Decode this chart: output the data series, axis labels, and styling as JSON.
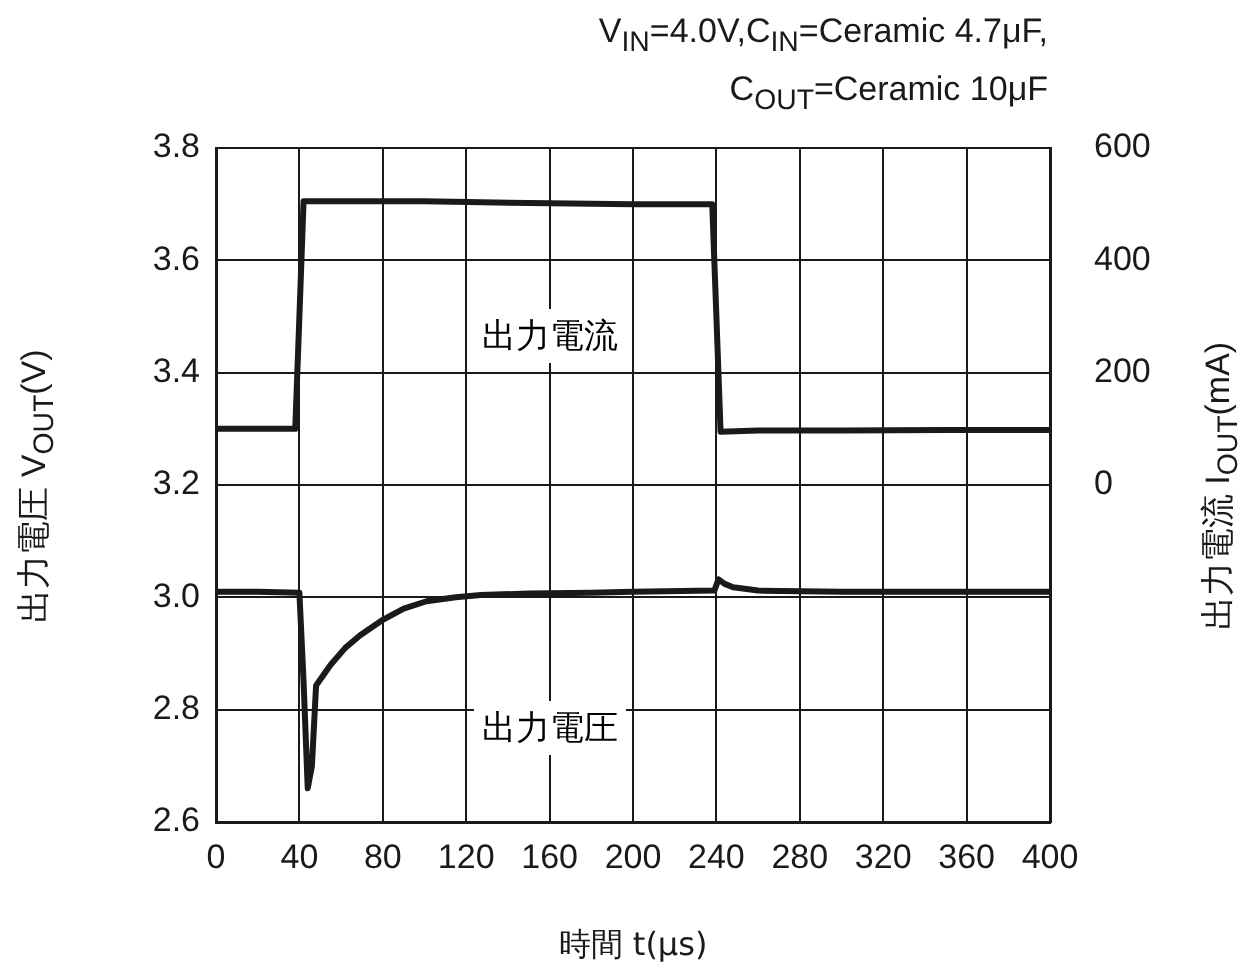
{
  "chart_data": {
    "type": "line",
    "subtitle": "V$_{IN}$=4.0V,C$_{IN}$=Ceramic 4.7μF,\nC$_{OUT}$=Ceramic 10μF",
    "xlabel": "時間 t(μs)",
    "ylabel": "出力電圧 V$_{OUT}$(V)",
    "y2label": "出力電流 I$_{OUT}$(mA)",
    "series": [
      {
        "color": "#1a1a1a",
        "axis": "y2",
        "x": [
          0,
          38,
          40,
          42,
          100,
          150,
          200,
          238,
          240,
          242,
          260,
          300,
          350,
          400
        ],
        "values": [
          100,
          100,
          300,
          505,
          505,
          502,
          500,
          500,
          300,
          95,
          97,
          97,
          98,
          98
        ]
      },
      {
        "color": "#1a1a1a",
        "axis": "y",
        "x": [
          0,
          20,
          40,
          42,
          44,
          46,
          48,
          55,
          62,
          69,
          80,
          90,
          101,
          115,
          127,
          150,
          180,
          200,
          239,
          241,
          244,
          248,
          260,
          300,
          350,
          400
        ],
        "values": [
          3.01,
          3.01,
          3.008,
          2.85,
          2.66,
          2.7,
          2.843,
          2.88,
          2.91,
          2.932,
          2.96,
          2.98,
          2.993,
          3.0,
          3.004,
          3.007,
          3.008,
          3.01,
          3.012,
          3.032,
          3.024,
          3.018,
          3.012,
          3.01,
          3.01,
          3.01
        ]
      }
    ],
    "annotations": [
      "出力電流",
      "出力電圧"
    ],
    "xlim": [
      0,
      400
    ],
    "xticks": [
      0,
      40,
      80,
      120,
      160,
      200,
      240,
      280,
      320,
      360,
      400
    ],
    "ylim": [
      2.6,
      3.8
    ],
    "yticks": [
      {
        "value": 2.6,
        "label": "2.6"
      },
      {
        "value": 2.8,
        "label": "2.8"
      },
      {
        "value": 3,
        "label": "3.0"
      },
      {
        "value": 3.2,
        "label": "3.2"
      },
      {
        "value": 3.4,
        "label": "3.4"
      },
      {
        "value": 3.6,
        "label": "3.6"
      },
      {
        "value": 3.8,
        "label": "3.8"
      }
    ],
    "y2lim": [
      -600,
      600
    ],
    "y2ticks": [
      0,
      200,
      400,
      600
    ],
    "grid": true,
    "legend": false,
    "marker": "none",
    "line_style": "solid"
  }
}
